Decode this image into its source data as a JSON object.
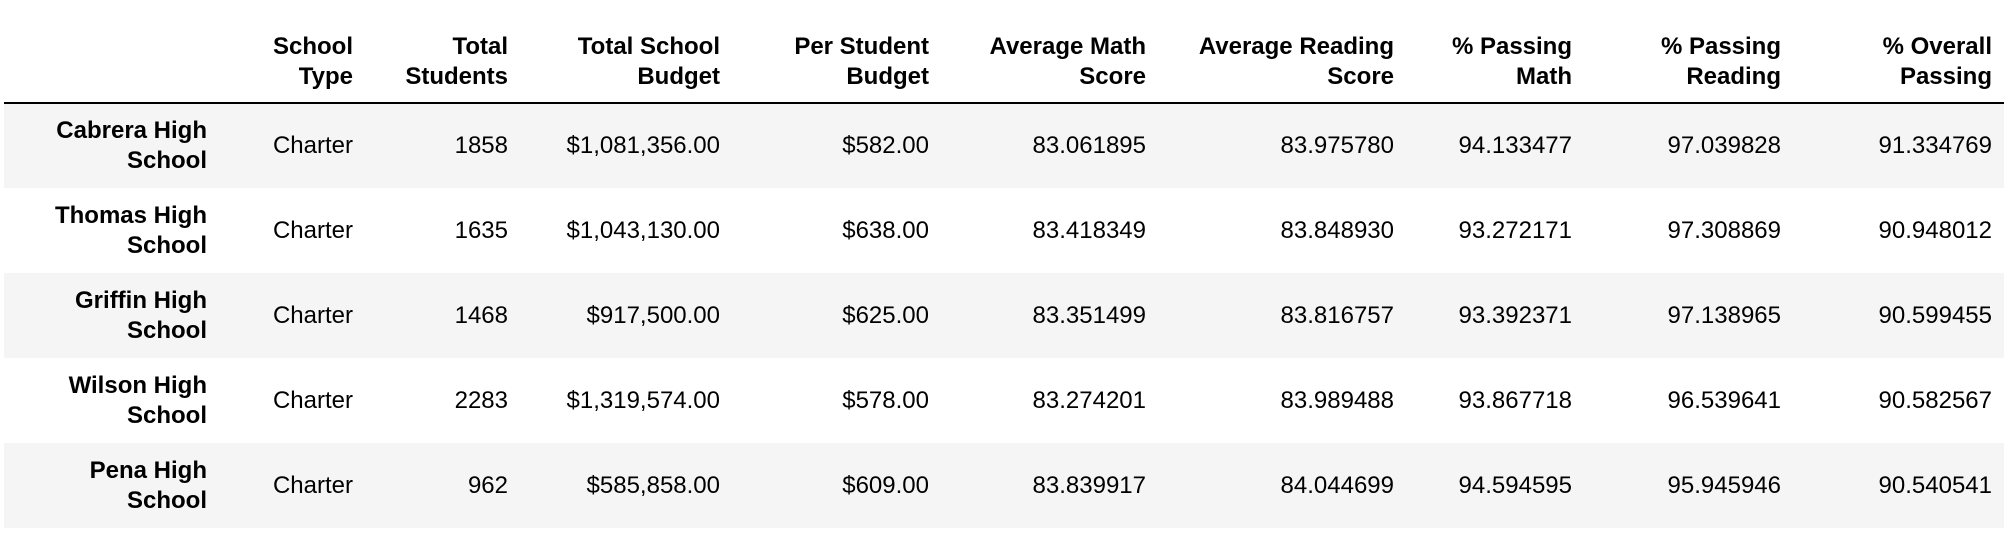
{
  "table": {
    "columns": [
      {
        "line1": "School",
        "line2": "Type"
      },
      {
        "line1": "Total",
        "line2": "Students"
      },
      {
        "line1": "Total School",
        "line2": "Budget"
      },
      {
        "line1": "Per Student",
        "line2": "Budget"
      },
      {
        "line1": "Average Math",
        "line2": "Score"
      },
      {
        "line1": "Average Reading",
        "line2": "Score"
      },
      {
        "line1": "% Passing",
        "line2": "Math"
      },
      {
        "line1": "% Passing",
        "line2": "Reading"
      },
      {
        "line1": "% Overall",
        "line2": "Passing"
      }
    ],
    "rows": [
      {
        "line1": "Cabrera High",
        "line2": "School",
        "cells": [
          "Charter",
          "1858",
          "$1,081,356.00",
          "$582.00",
          "83.061895",
          "83.975780",
          "94.133477",
          "97.039828",
          "91.334769"
        ]
      },
      {
        "line1": "Thomas High",
        "line2": "School",
        "cells": [
          "Charter",
          "1635",
          "$1,043,130.00",
          "$638.00",
          "83.418349",
          "83.848930",
          "93.272171",
          "97.308869",
          "90.948012"
        ]
      },
      {
        "line1": "Griffin High",
        "line2": "School",
        "cells": [
          "Charter",
          "1468",
          "$917,500.00",
          "$625.00",
          "83.351499",
          "83.816757",
          "93.392371",
          "97.138965",
          "90.599455"
        ]
      },
      {
        "line1": "Wilson High",
        "line2": "School",
        "cells": [
          "Charter",
          "2283",
          "$1,319,574.00",
          "$578.00",
          "83.274201",
          "83.989488",
          "93.867718",
          "96.539641",
          "90.582567"
        ]
      },
      {
        "line1": "Pena High",
        "line2": "School",
        "cells": [
          "Charter",
          "962",
          "$585,858.00",
          "$609.00",
          "83.839917",
          "84.044699",
          "94.594595",
          "95.945946",
          "90.540541"
        ]
      }
    ]
  }
}
